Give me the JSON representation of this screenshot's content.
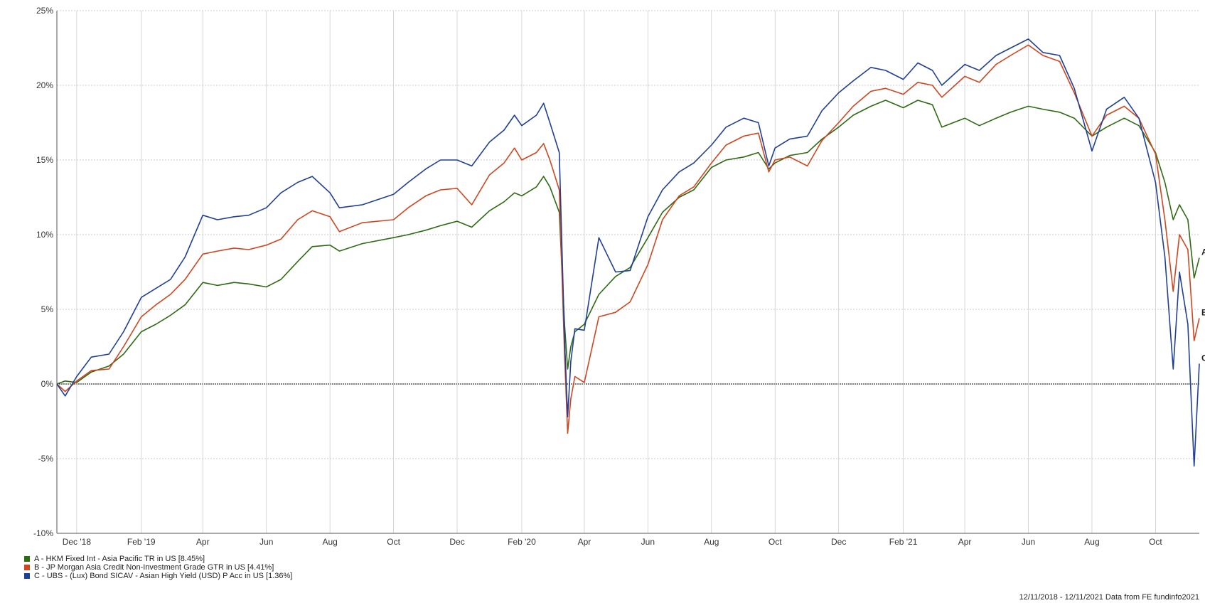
{
  "chart_data": {
    "type": "line",
    "title": "",
    "xlabel": "",
    "ylabel": "",
    "x_range": [
      "2018-11-12",
      "2021-11-12"
    ],
    "ylim": [
      -10,
      25
    ],
    "y_ticks": [
      25,
      20,
      15,
      10,
      5,
      0,
      -5,
      -10
    ],
    "y_tick_labels": [
      "25%",
      "20%",
      "15%",
      "10%",
      "5%",
      "0%",
      "-5%",
      "-10%"
    ],
    "x_ticks": [
      {
        "date": "2018-12-01",
        "label": "Dec '18"
      },
      {
        "date": "2019-02-01",
        "label": "Feb '19"
      },
      {
        "date": "2019-04-01",
        "label": "Apr"
      },
      {
        "date": "2019-06-01",
        "label": "Jun"
      },
      {
        "date": "2019-08-01",
        "label": "Aug"
      },
      {
        "date": "2019-10-01",
        "label": "Oct"
      },
      {
        "date": "2019-12-01",
        "label": "Dec"
      },
      {
        "date": "2020-02-01",
        "label": "Feb '20"
      },
      {
        "date": "2020-04-01",
        "label": "Apr"
      },
      {
        "date": "2020-06-01",
        "label": "Jun"
      },
      {
        "date": "2020-08-01",
        "label": "Aug"
      },
      {
        "date": "2020-10-01",
        "label": "Oct"
      },
      {
        "date": "2020-12-01",
        "label": "Dec"
      },
      {
        "date": "2021-02-01",
        "label": "Feb '21"
      },
      {
        "date": "2021-04-01",
        "label": "Apr"
      },
      {
        "date": "2021-06-01",
        "label": "Jun"
      },
      {
        "date": "2021-08-01",
        "label": "Aug"
      },
      {
        "date": "2021-10-01",
        "label": "Oct"
      }
    ],
    "grid": true,
    "legend_position": "bottom-left",
    "series": [
      {
        "name": "A - HKM Fixed Int - Asia Pacific TR in US [8.45%]",
        "end_label": "A",
        "color": "#2e6b12",
        "points": [
          [
            "2018-11-12",
            0.0
          ],
          [
            "2018-11-20",
            0.2
          ],
          [
            "2018-12-01",
            0.1
          ],
          [
            "2018-12-15",
            0.8
          ],
          [
            "2019-01-01",
            1.2
          ],
          [
            "2019-01-15",
            2.0
          ],
          [
            "2019-02-01",
            3.5
          ],
          [
            "2019-02-15",
            4.0
          ],
          [
            "2019-03-01",
            4.6
          ],
          [
            "2019-03-15",
            5.3
          ],
          [
            "2019-04-01",
            6.8
          ],
          [
            "2019-04-15",
            6.6
          ],
          [
            "2019-05-01",
            6.8
          ],
          [
            "2019-05-15",
            6.7
          ],
          [
            "2019-06-01",
            6.5
          ],
          [
            "2019-06-15",
            7.0
          ],
          [
            "2019-07-01",
            8.2
          ],
          [
            "2019-07-15",
            9.2
          ],
          [
            "2019-08-01",
            9.3
          ],
          [
            "2019-08-10",
            8.9
          ],
          [
            "2019-09-01",
            9.4
          ],
          [
            "2019-10-01",
            9.8
          ],
          [
            "2019-10-15",
            10.0
          ],
          [
            "2019-11-01",
            10.3
          ],
          [
            "2019-11-15",
            10.6
          ],
          [
            "2019-12-01",
            10.9
          ],
          [
            "2019-12-15",
            10.5
          ],
          [
            "2020-01-01",
            11.6
          ],
          [
            "2020-01-15",
            12.2
          ],
          [
            "2020-01-25",
            12.8
          ],
          [
            "2020-02-01",
            12.6
          ],
          [
            "2020-02-15",
            13.2
          ],
          [
            "2020-02-22",
            13.9
          ],
          [
            "2020-02-28",
            13.2
          ],
          [
            "2020-03-08",
            11.5
          ],
          [
            "2020-03-13",
            4.0
          ],
          [
            "2020-03-16",
            1.0
          ],
          [
            "2020-03-19",
            2.5
          ],
          [
            "2020-03-23",
            3.5
          ],
          [
            "2020-04-01",
            4.0
          ],
          [
            "2020-04-15",
            6.0
          ],
          [
            "2020-05-01",
            7.2
          ],
          [
            "2020-05-15",
            7.8
          ],
          [
            "2020-06-01",
            9.8
          ],
          [
            "2020-06-15",
            11.5
          ],
          [
            "2020-07-01",
            12.5
          ],
          [
            "2020-07-15",
            13.0
          ],
          [
            "2020-08-01",
            14.5
          ],
          [
            "2020-08-15",
            15.0
          ],
          [
            "2020-09-01",
            15.2
          ],
          [
            "2020-09-15",
            15.5
          ],
          [
            "2020-09-25",
            14.4
          ],
          [
            "2020-10-01",
            14.8
          ],
          [
            "2020-10-15",
            15.3
          ],
          [
            "2020-11-01",
            15.5
          ],
          [
            "2020-11-15",
            16.4
          ],
          [
            "2020-12-01",
            17.2
          ],
          [
            "2020-12-15",
            18.0
          ],
          [
            "2021-01-01",
            18.6
          ],
          [
            "2021-01-15",
            19.0
          ],
          [
            "2021-02-01",
            18.5
          ],
          [
            "2021-02-15",
            19.0
          ],
          [
            "2021-03-01",
            18.7
          ],
          [
            "2021-03-10",
            17.2
          ],
          [
            "2021-04-01",
            17.8
          ],
          [
            "2021-04-15",
            17.3
          ],
          [
            "2021-05-01",
            17.8
          ],
          [
            "2021-05-15",
            18.2
          ],
          [
            "2021-06-01",
            18.6
          ],
          [
            "2021-06-15",
            18.4
          ],
          [
            "2021-07-01",
            18.2
          ],
          [
            "2021-07-15",
            17.8
          ],
          [
            "2021-08-01",
            16.6
          ],
          [
            "2021-08-15",
            17.2
          ],
          [
            "2021-09-01",
            17.8
          ],
          [
            "2021-09-15",
            17.3
          ],
          [
            "2021-10-01",
            15.5
          ],
          [
            "2021-10-10",
            13.5
          ],
          [
            "2021-10-18",
            11.0
          ],
          [
            "2021-10-24",
            12.0
          ],
          [
            "2021-11-01",
            11.0
          ],
          [
            "2021-11-07",
            7.1
          ],
          [
            "2021-11-12",
            8.45
          ]
        ]
      },
      {
        "name": "B - JP Morgan Asia Credit Non-Investment Grade GTR in US [4.41%]",
        "end_label": "B",
        "color": "#d2451e",
        "points": [
          [
            "2018-11-12",
            0.0
          ],
          [
            "2018-11-20",
            -0.5
          ],
          [
            "2018-12-01",
            0.2
          ],
          [
            "2018-12-15",
            0.9
          ],
          [
            "2019-01-01",
            1.0
          ],
          [
            "2019-01-15",
            2.5
          ],
          [
            "2019-02-01",
            4.5
          ],
          [
            "2019-02-15",
            5.3
          ],
          [
            "2019-03-01",
            6.0
          ],
          [
            "2019-03-15",
            7.0
          ],
          [
            "2019-04-01",
            8.7
          ],
          [
            "2019-04-15",
            8.9
          ],
          [
            "2019-05-01",
            9.1
          ],
          [
            "2019-05-15",
            9.0
          ],
          [
            "2019-06-01",
            9.3
          ],
          [
            "2019-06-15",
            9.7
          ],
          [
            "2019-07-01",
            11.0
          ],
          [
            "2019-07-15",
            11.6
          ],
          [
            "2019-08-01",
            11.2
          ],
          [
            "2019-08-10",
            10.2
          ],
          [
            "2019-09-01",
            10.8
          ],
          [
            "2019-10-01",
            11.0
          ],
          [
            "2019-10-15",
            11.8
          ],
          [
            "2019-11-01",
            12.6
          ],
          [
            "2019-11-15",
            13.0
          ],
          [
            "2019-12-01",
            13.1
          ],
          [
            "2019-12-15",
            12.0
          ],
          [
            "2020-01-01",
            14.0
          ],
          [
            "2020-01-15",
            14.8
          ],
          [
            "2020-01-25",
            15.8
          ],
          [
            "2020-02-01",
            15.0
          ],
          [
            "2020-02-15",
            15.5
          ],
          [
            "2020-02-22",
            16.1
          ],
          [
            "2020-02-28",
            15.0
          ],
          [
            "2020-03-08",
            13.0
          ],
          [
            "2020-03-13",
            2.0
          ],
          [
            "2020-03-16",
            -3.3
          ],
          [
            "2020-03-19",
            -1.0
          ],
          [
            "2020-03-23",
            0.5
          ],
          [
            "2020-04-01",
            0.1
          ],
          [
            "2020-04-15",
            4.5
          ],
          [
            "2020-05-01",
            4.8
          ],
          [
            "2020-05-15",
            5.5
          ],
          [
            "2020-06-01",
            8.0
          ],
          [
            "2020-06-15",
            11.0
          ],
          [
            "2020-07-01",
            12.6
          ],
          [
            "2020-07-15",
            13.2
          ],
          [
            "2020-08-01",
            14.8
          ],
          [
            "2020-08-15",
            16.0
          ],
          [
            "2020-09-01",
            16.6
          ],
          [
            "2020-09-15",
            16.8
          ],
          [
            "2020-09-25",
            14.2
          ],
          [
            "2020-10-01",
            15.0
          ],
          [
            "2020-10-15",
            15.2
          ],
          [
            "2020-11-01",
            14.6
          ],
          [
            "2020-11-15",
            16.3
          ],
          [
            "2020-12-01",
            17.5
          ],
          [
            "2020-12-15",
            18.6
          ],
          [
            "2021-01-01",
            19.6
          ],
          [
            "2021-01-15",
            19.8
          ],
          [
            "2021-02-01",
            19.4
          ],
          [
            "2021-02-15",
            20.2
          ],
          [
            "2021-03-01",
            20.0
          ],
          [
            "2021-03-10",
            19.2
          ],
          [
            "2021-04-01",
            20.6
          ],
          [
            "2021-04-15",
            20.2
          ],
          [
            "2021-05-01",
            21.4
          ],
          [
            "2021-05-15",
            22.0
          ],
          [
            "2021-06-01",
            22.7
          ],
          [
            "2021-06-15",
            22.0
          ],
          [
            "2021-07-01",
            21.6
          ],
          [
            "2021-07-15",
            19.5
          ],
          [
            "2021-08-01",
            16.6
          ],
          [
            "2021-08-15",
            18.0
          ],
          [
            "2021-09-01",
            18.6
          ],
          [
            "2021-09-15",
            17.8
          ],
          [
            "2021-10-01",
            15.4
          ],
          [
            "2021-10-10",
            11.0
          ],
          [
            "2021-10-18",
            6.2
          ],
          [
            "2021-10-24",
            10.0
          ],
          [
            "2021-11-01",
            9.0
          ],
          [
            "2021-11-07",
            2.9
          ],
          [
            "2021-11-12",
            4.41
          ]
        ]
      },
      {
        "name": "C - UBS - (Lux) Bond SICAV - Asian High Yield (USD) P Acc in US [1.36%]",
        "end_label": "C",
        "color": "#1f3f99",
        "points": [
          [
            "2018-11-12",
            0.0
          ],
          [
            "2018-11-20",
            -0.8
          ],
          [
            "2018-12-01",
            0.5
          ],
          [
            "2018-12-15",
            1.8
          ],
          [
            "2019-01-01",
            2.0
          ],
          [
            "2019-01-15",
            3.5
          ],
          [
            "2019-02-01",
            5.8
          ],
          [
            "2019-02-15",
            6.4
          ],
          [
            "2019-03-01",
            7.0
          ],
          [
            "2019-03-15",
            8.5
          ],
          [
            "2019-04-01",
            11.3
          ],
          [
            "2019-04-15",
            11.0
          ],
          [
            "2019-05-01",
            11.2
          ],
          [
            "2019-05-15",
            11.3
          ],
          [
            "2019-06-01",
            11.8
          ],
          [
            "2019-06-15",
            12.8
          ],
          [
            "2019-07-01",
            13.5
          ],
          [
            "2019-07-15",
            13.9
          ],
          [
            "2019-08-01",
            12.8
          ],
          [
            "2019-08-10",
            11.8
          ],
          [
            "2019-09-01",
            12.0
          ],
          [
            "2019-10-01",
            12.7
          ],
          [
            "2019-10-15",
            13.5
          ],
          [
            "2019-11-01",
            14.4
          ],
          [
            "2019-11-15",
            15.0
          ],
          [
            "2019-12-01",
            15.0
          ],
          [
            "2019-12-15",
            14.6
          ],
          [
            "2020-01-01",
            16.2
          ],
          [
            "2020-01-15",
            17.0
          ],
          [
            "2020-01-25",
            18.0
          ],
          [
            "2020-02-01",
            17.3
          ],
          [
            "2020-02-15",
            18.0
          ],
          [
            "2020-02-22",
            18.8
          ],
          [
            "2020-02-28",
            17.5
          ],
          [
            "2020-03-08",
            15.5
          ],
          [
            "2020-03-13",
            3.0
          ],
          [
            "2020-03-16",
            -2.2
          ],
          [
            "2020-03-19",
            1.5
          ],
          [
            "2020-03-23",
            3.7
          ],
          [
            "2020-04-01",
            3.6
          ],
          [
            "2020-04-15",
            9.8
          ],
          [
            "2020-05-01",
            7.5
          ],
          [
            "2020-05-15",
            7.6
          ],
          [
            "2020-06-01",
            11.2
          ],
          [
            "2020-06-15",
            13.0
          ],
          [
            "2020-07-01",
            14.2
          ],
          [
            "2020-07-15",
            14.8
          ],
          [
            "2020-08-01",
            16.0
          ],
          [
            "2020-08-15",
            17.2
          ],
          [
            "2020-09-01",
            17.8
          ],
          [
            "2020-09-15",
            17.5
          ],
          [
            "2020-09-25",
            14.6
          ],
          [
            "2020-10-01",
            15.8
          ],
          [
            "2020-10-15",
            16.4
          ],
          [
            "2020-11-01",
            16.6
          ],
          [
            "2020-11-15",
            18.3
          ],
          [
            "2020-12-01",
            19.5
          ],
          [
            "2020-12-15",
            20.3
          ],
          [
            "2021-01-01",
            21.2
          ],
          [
            "2021-01-15",
            21.0
          ],
          [
            "2021-02-01",
            20.4
          ],
          [
            "2021-02-15",
            21.5
          ],
          [
            "2021-03-01",
            21.0
          ],
          [
            "2021-03-10",
            20.0
          ],
          [
            "2021-04-01",
            21.4
          ],
          [
            "2021-04-15",
            21.0
          ],
          [
            "2021-05-01",
            22.0
          ],
          [
            "2021-05-15",
            22.5
          ],
          [
            "2021-06-01",
            23.1
          ],
          [
            "2021-06-15",
            22.2
          ],
          [
            "2021-07-01",
            22.0
          ],
          [
            "2021-07-15",
            19.8
          ],
          [
            "2021-08-01",
            15.6
          ],
          [
            "2021-08-15",
            18.4
          ],
          [
            "2021-09-01",
            19.2
          ],
          [
            "2021-09-15",
            17.8
          ],
          [
            "2021-10-01",
            13.5
          ],
          [
            "2021-10-10",
            8.5
          ],
          [
            "2021-10-18",
            1.0
          ],
          [
            "2021-10-24",
            7.5
          ],
          [
            "2021-11-01",
            4.0
          ],
          [
            "2021-11-07",
            -5.5
          ],
          [
            "2021-11-12",
            1.36
          ]
        ]
      }
    ],
    "footer": "12/11/2018 - 12/11/2021 Data from FE fundinfo2021"
  }
}
